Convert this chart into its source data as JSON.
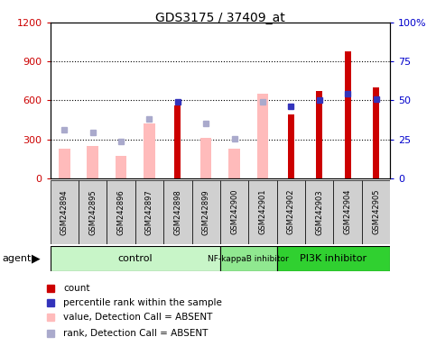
{
  "title": "GDS3175 / 37409_at",
  "samples": [
    "GSM242894",
    "GSM242895",
    "GSM242896",
    "GSM242897",
    "GSM242898",
    "GSM242899",
    "GSM242900",
    "GSM242901",
    "GSM242902",
    "GSM242903",
    "GSM242904",
    "GSM242905"
  ],
  "count": [
    null,
    null,
    null,
    null,
    560,
    null,
    null,
    null,
    490,
    670,
    980,
    700
  ],
  "percentile_rank": [
    null,
    null,
    null,
    null,
    49,
    null,
    null,
    null,
    46,
    50,
    54,
    51
  ],
  "value_absent": [
    230,
    250,
    170,
    420,
    null,
    310,
    230,
    650,
    null,
    null,
    null,
    null
  ],
  "rank_absent": [
    370,
    355,
    285,
    460,
    null,
    420,
    305,
    590,
    null,
    null,
    null,
    null
  ],
  "ylim_left": [
    0,
    1200
  ],
  "ylim_right": [
    0,
    100
  ],
  "yticks_left": [
    0,
    300,
    600,
    900,
    1200
  ],
  "ytick_labels_left": [
    "0",
    "300",
    "600",
    "900",
    "1200"
  ],
  "ytick_labels_right": [
    "0",
    "25",
    "50",
    "75",
    "100%"
  ],
  "groups": [
    {
      "label": "control",
      "start": 0,
      "end": 6,
      "color": "#c8f5c8"
    },
    {
      "label": "NF-kappaB inhibitor",
      "start": 6,
      "end": 8,
      "color": "#90e890"
    },
    {
      "label": "PI3K inhibitor",
      "start": 8,
      "end": 12,
      "color": "#30d030"
    }
  ],
  "bar_color_count": "#cc0000",
  "bar_color_rank": "#3333bb",
  "bar_color_value_absent": "#ffbbbb",
  "bar_color_rank_absent": "#aaaacc",
  "ylabel_left_color": "#cc0000",
  "ylabel_right_color": "#0000cc",
  "sample_box_color": "#d0d0d0",
  "fig_width": 4.83,
  "fig_height": 3.84,
  "dpi": 100
}
